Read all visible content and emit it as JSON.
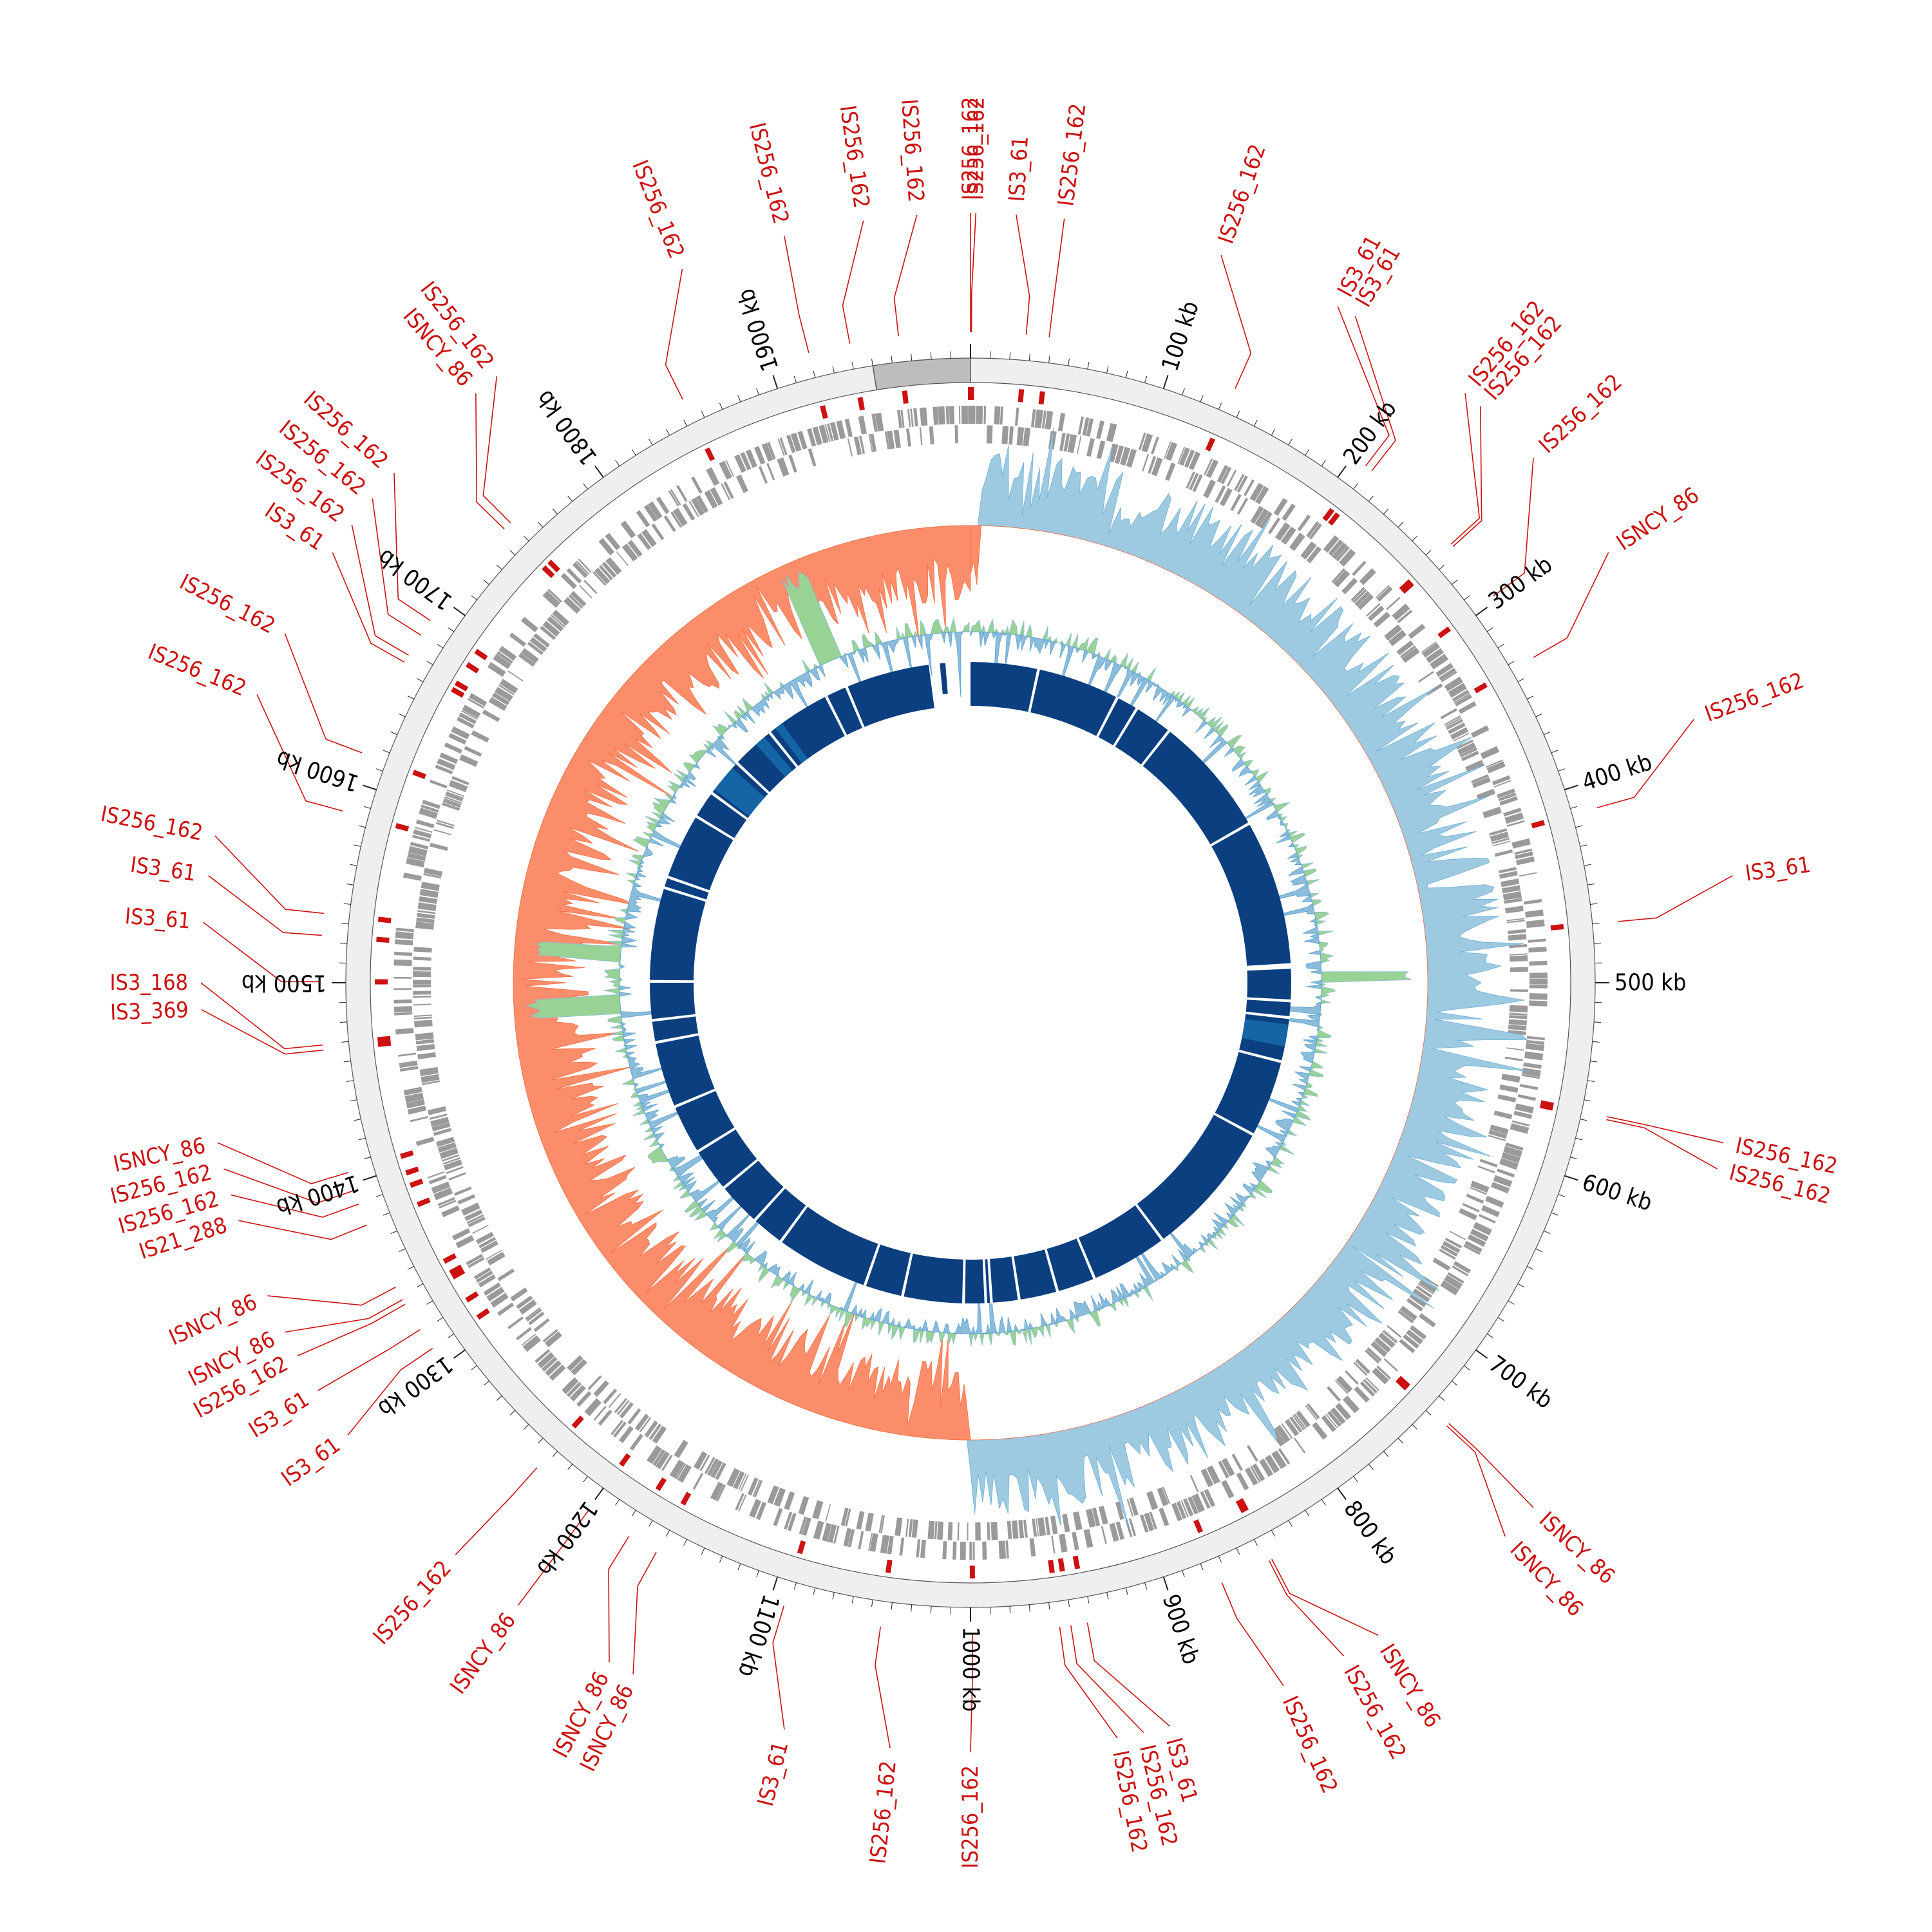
{
  "genome": {
    "length_kb": 2000,
    "highlight_start_kb": 1950,
    "highlight_end_kb": 2000
  },
  "colors": {
    "ring": "#efefef",
    "ring_highlight": "#bdbdbd",
    "ring_stroke": "#555555",
    "is_red": "#cc1111",
    "cds_gray": "#9a9a9a",
    "skew_pos": "#9ecae1",
    "skew_neg": "#fc8d6a",
    "gc_pos": "#98d294",
    "gc_neg": "#8bbcdc",
    "homology": "#0b3f80",
    "homology_light": "#1565a6"
  },
  "scale_ticks": [
    {
      "kb": 100,
      "label": "100 kb"
    },
    {
      "kb": 200,
      "label": "200 kb"
    },
    {
      "kb": 300,
      "label": "300 kb"
    },
    {
      "kb": 400,
      "label": "400 kb"
    },
    {
      "kb": 500,
      "label": "500 kb"
    },
    {
      "kb": 600,
      "label": "600 kb"
    },
    {
      "kb": 700,
      "label": "700 kb"
    },
    {
      "kb": 800,
      "label": "800 kb"
    },
    {
      "kb": 900,
      "label": "900 kb"
    },
    {
      "kb": 1000,
      "label": "1000 kb"
    },
    {
      "kb": 1100,
      "label": "1100 kb"
    },
    {
      "kb": 1200,
      "label": "1200 kb"
    },
    {
      "kb": 1300,
      "label": "1300 kb"
    },
    {
      "kb": 1400,
      "label": "1400 kb"
    },
    {
      "kb": 1500,
      "label": "1500 kb"
    },
    {
      "kb": 1600,
      "label": "1600 kb"
    },
    {
      "kb": 1700,
      "label": "1700 kb"
    },
    {
      "kb": 1800,
      "label": "1800 kb"
    },
    {
      "kb": 1900,
      "label": "1900 kb"
    }
  ],
  "is_elements": [
    {
      "kb": 0.0,
      "label": "IS256_162",
      "label_deg": 0.0
    },
    {
      "kb": 0.5,
      "label": "IS256_162",
      "label_deg": 0.4
    },
    {
      "kb": 27.3,
      "label": "IS3_61",
      "label_deg": 3.4
    },
    {
      "kb": 38.6,
      "label": "IS256_162",
      "label_deg": 7.0
    },
    {
      "kb": 133.4,
      "label": "IS256_162",
      "label_deg": 19.0
    },
    {
      "kb": 207.8,
      "label": "IS3_61",
      "label_deg": 28.5
    },
    {
      "kb": 211.6,
      "label": "IS3_61",
      "label_deg": 30.0
    },
    {
      "kb": 264.5,
      "label": "IS256_162",
      "label_deg": 40.0
    },
    {
      "kb": 266.0,
      "label": "IS256_162",
      "label_deg": 41.5
    },
    {
      "kb": 297.3,
      "label": "IS256_162",
      "label_deg": 47.0
    },
    {
      "kb": 333.2,
      "label": "ISNCY_86",
      "label_deg": 56.0
    },
    {
      "kb": 413.3,
      "label": "IS256_162",
      "label_deg": 70.0
    },
    {
      "kb": 470.0,
      "label": "IS3_61",
      "label_deg": 82.0
    },
    {
      "kb": 566.0,
      "label": "IS256_162",
      "label_deg": 102.0
    },
    {
      "kb": 567.5,
      "label": "IS256_162",
      "label_deg": 104.0
    },
    {
      "kb": 737.0,
      "label": "ISNCY_86",
      "label_deg": 133.0
    },
    {
      "kb": 738.5,
      "label": "ISNCY_86",
      "label_deg": 136.0
    },
    {
      "kb": 846.7,
      "label": "ISNCY_86",
      "label_deg": 148.0
    },
    {
      "kb": 848.2,
      "label": "IS256_162",
      "label_deg": 151.0
    },
    {
      "kb": 873.7,
      "label": "IS256_162",
      "label_deg": 156.0
    },
    {
      "kb": 942.5,
      "label": "IS3_61",
      "label_deg": 165.0
    },
    {
      "kb": 950.7,
      "label": "IS256_162",
      "label_deg": 167.0
    },
    {
      "kb": 956.2,
      "label": "IS256_162",
      "label_deg": 169.0
    },
    {
      "kb": 999.0,
      "label": "IS256_162",
      "label_deg": 180.0
    },
    {
      "kb": 1044.2,
      "label": "IS256_162",
      "label_deg": 186.0
    },
    {
      "kb": 1092.6,
      "label": "IS3_61",
      "label_deg": 194.0
    },
    {
      "kb": 1160.5,
      "label": "ISNCY_86",
      "label_deg": 206.0
    },
    {
      "kb": 1176.0,
      "label": "ISNCY_86",
      "label_deg": 208.0
    },
    {
      "kb": 1199.5,
      "label": "ISNCY_86",
      "label_deg": 216.0
    },
    {
      "kb": 1232.2,
      "label": "IS256_162",
      "label_deg": 222.0
    },
    {
      "kb": 1310.0,
      "label": "IS3_61",
      "label_deg": 234.0
    },
    {
      "kb": 1321.0,
      "label": "IS3_61",
      "label_deg": 238.0
    },
    {
      "kb": 1335.4,
      "label": "IS256_162",
      "label_deg": 241.0
    },
    {
      "kb": 1338.0,
      "label": "ISNCY_86",
      "label_deg": 243.0
    },
    {
      "kb": 1345.0,
      "label": "ISNCY_86",
      "label_deg": 246.0
    },
    {
      "kb": 1378.5,
      "label": "IS21_288",
      "label_deg": 252.0
    },
    {
      "kb": 1389.5,
      "label": "IS256_162",
      "label_deg": 254.0
    },
    {
      "kb": 1396.5,
      "label": "IS256_162",
      "label_deg": 256.0
    },
    {
      "kb": 1405.8,
      "label": "ISNCY_86",
      "label_deg": 258.0
    },
    {
      "kb": 1467.0,
      "label": "IS3_369",
      "label_deg": 268.0
    },
    {
      "kb": 1469.5,
      "label": "IS3_168",
      "label_deg": 270.0
    },
    {
      "kb": 1500.5,
      "label": "IS3_61",
      "label_deg": 274.5
    },
    {
      "kb": 1523.2,
      "label": "IS3_61",
      "label_deg": 278.0
    },
    {
      "kb": 1534.0,
      "label": "IS256_162",
      "label_deg": 281.0
    },
    {
      "kb": 1585.0,
      "label": "IS256_162",
      "label_deg": 292.0
    },
    {
      "kb": 1615.0,
      "label": "IS256_162",
      "label_deg": 297.0
    },
    {
      "kb": 1664.0,
      "label": "IS3_61",
      "label_deg": 304.0
    },
    {
      "kb": 1668.0,
      "label": "IS256_162",
      "label_deg": 306.5
    },
    {
      "kb": 1679.5,
      "label": "IS256_162",
      "label_deg": 309.0
    },
    {
      "kb": 1688.0,
      "label": "IS256_162",
      "label_deg": 311.5
    },
    {
      "kb": 1745.7,
      "label": "ISNCY_86",
      "label_deg": 320.0
    },
    {
      "kb": 1750.0,
      "label": "IS256_162",
      "label_deg": 322.0
    },
    {
      "kb": 1854.1,
      "label": "IS256_162",
      "label_deg": 338.0
    },
    {
      "kb": 1920.0,
      "label": "IS256_162",
      "label_deg": 346.0
    },
    {
      "kb": 1940.6,
      "label": "IS256_162",
      "label_deg": 352.0
    },
    {
      "kb": 1964.7,
      "label": "IS256_162",
      "label_deg": 356.0
    }
  ]
}
